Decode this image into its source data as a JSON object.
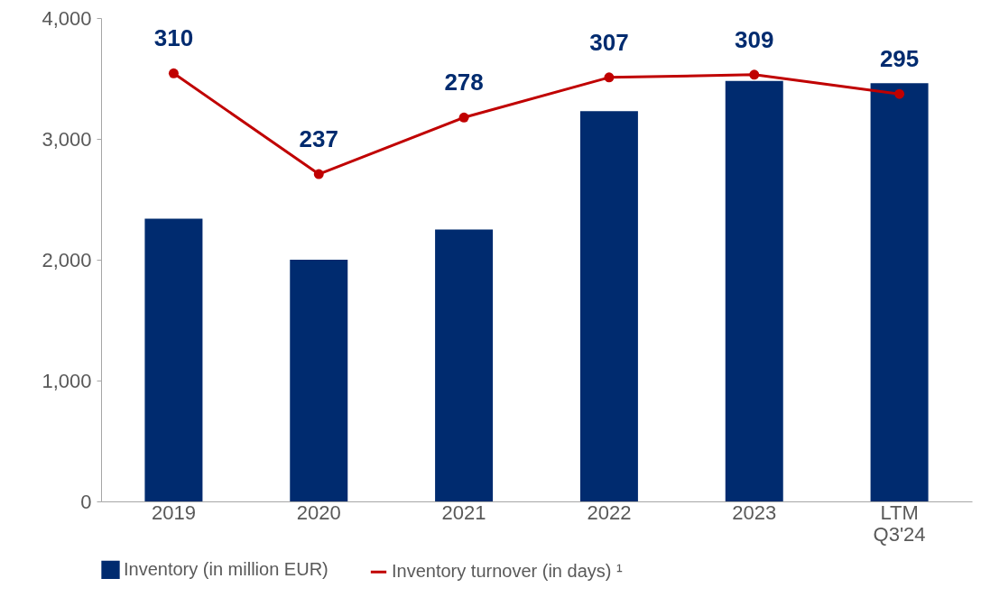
{
  "chart_data": {
    "type": "bar",
    "categories": [
      "2019",
      "2020",
      "2021",
      "2022",
      "2023",
      "LTM Q3'24"
    ],
    "series": [
      {
        "name": "Inventory (in million EUR)",
        "color": "#002b6f",
        "values": [
          2340,
          2000,
          2250,
          3230,
          3480,
          3460
        ]
      },
      {
        "name": "Inventory turnover (in days) ¹",
        "type": "line",
        "axis": "y2",
        "color": "#c00000",
        "marker": "circle",
        "values": [
          310,
          237,
          278,
          307,
          309,
          295
        ],
        "value_labels": [
          "310",
          "237",
          "278",
          "307",
          "309",
          "295"
        ]
      }
    ],
    "ylim": [
      0,
      4000
    ],
    "yticks": [
      0,
      {
        "value": 1000,
        "label": "1,000"
      },
      {
        "value": 2000,
        "label": "2,000"
      },
      {
        "value": 3000,
        "label": "3,000"
      },
      {
        "value": 4000,
        "label": "4,000"
      }
    ],
    "y2lim": [
      0,
      350
    ],
    "grid": false,
    "legend": "bottom"
  }
}
